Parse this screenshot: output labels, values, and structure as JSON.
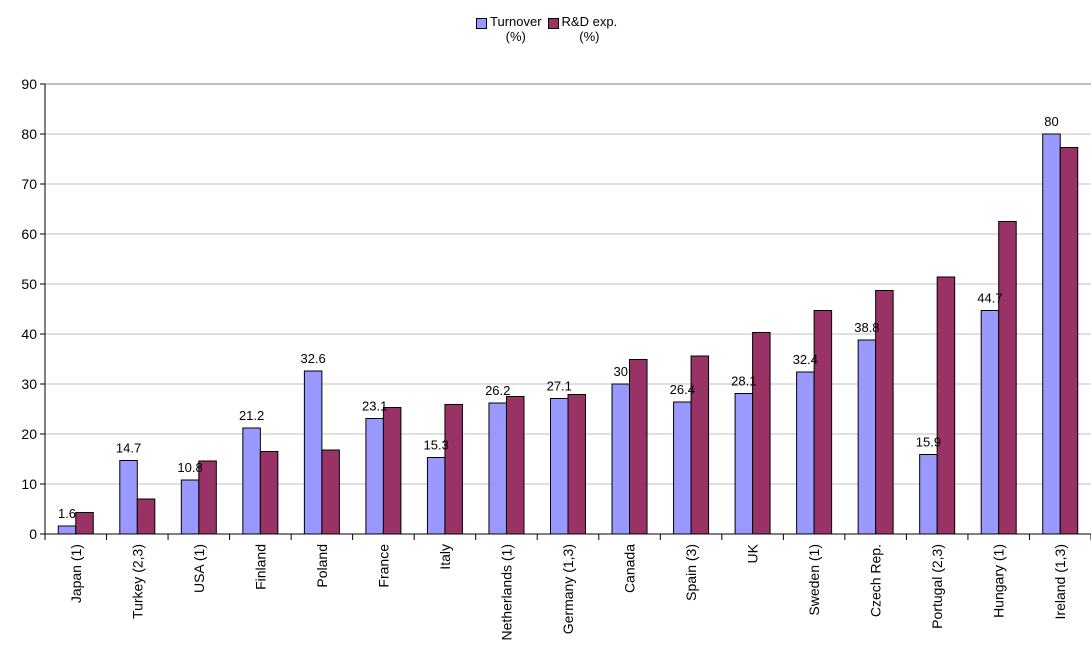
{
  "chart_data": {
    "type": "bar",
    "title": "",
    "xlabel": "",
    "ylabel": "",
    "ylim": [
      0,
      90
    ],
    "yticks": [
      0,
      10,
      20,
      30,
      40,
      50,
      60,
      70,
      80,
      90
    ],
    "grid": true,
    "legend_position": "top-center",
    "categories": [
      "Japan (1)",
      "Turkey (2,3)",
      "USA (1)",
      "Finland",
      "Poland",
      "France",
      "Italy",
      "Netherlands (1)",
      "Germany (1,3)",
      "Canada",
      "Spain (3)",
      "UK",
      "Sweden (1)",
      "Czech Rep.",
      "Portugal (2,3)",
      "Hungary (1)",
      "Ireland (1,3)"
    ],
    "series": [
      {
        "name": "Turnover\n(%)",
        "color": "#9999ff",
        "values": [
          1.6,
          14.7,
          10.8,
          21.2,
          32.6,
          23.1,
          15.3,
          26.2,
          27.1,
          30,
          26.4,
          28.1,
          32.4,
          38.8,
          15.9,
          44.7,
          80
        ],
        "labels": [
          "1.6",
          "14.7",
          "10.8",
          "21.2",
          "32.6",
          "23.1",
          "15.3",
          "26.2",
          "27.1",
          "30",
          "26.4",
          "28.1",
          "32.4",
          "38.8",
          "15.9",
          "44.7",
          "80"
        ]
      },
      {
        "name": "R&D exp.\n(%)",
        "color": "#993366",
        "values": [
          4.3,
          7.0,
          14.6,
          16.5,
          16.8,
          25.3,
          25.9,
          27.5,
          27.9,
          34.9,
          35.6,
          40.3,
          44.7,
          48.7,
          51.4,
          62.5,
          77.3
        ]
      }
    ]
  }
}
